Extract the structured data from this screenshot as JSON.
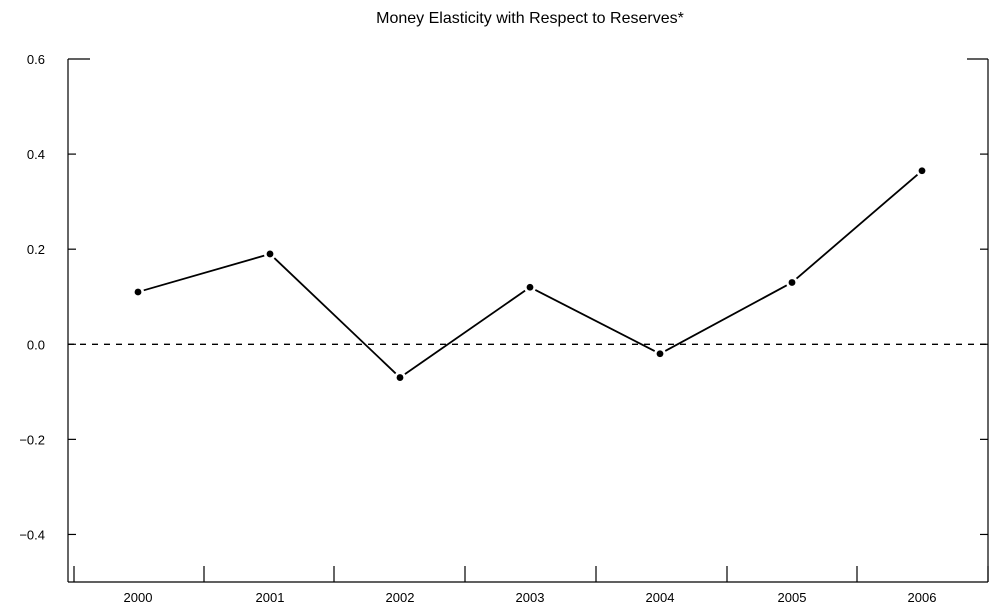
{
  "chart_data": {
    "type": "line",
    "title": "Money Elasticity with Respect to Reserves*",
    "xlabel": "",
    "ylabel": "",
    "categories": [
      "2000",
      "2001",
      "2002",
      "2003",
      "2004",
      "2005",
      "2006"
    ],
    "series": [
      {
        "values": [
          0.11,
          0.19,
          -0.07,
          0.12,
          -0.02,
          0.13,
          0.365
        ]
      }
    ],
    "ylim": [
      -0.5,
      0.6
    ],
    "yticks": [
      0.6,
      0.4,
      0.2,
      0.0,
      -0.2,
      -0.4
    ],
    "ytick_labels": [
      "0.6",
      "0.4",
      "0.2",
      "0.0",
      "−0.2",
      "−0.4"
    ],
    "reference_line": {
      "y": 0.0,
      "style": "dashed"
    },
    "grid": false,
    "legend": "none",
    "colors": {
      "line": "#000000",
      "marker": "#000000",
      "axis": "#000000"
    }
  }
}
